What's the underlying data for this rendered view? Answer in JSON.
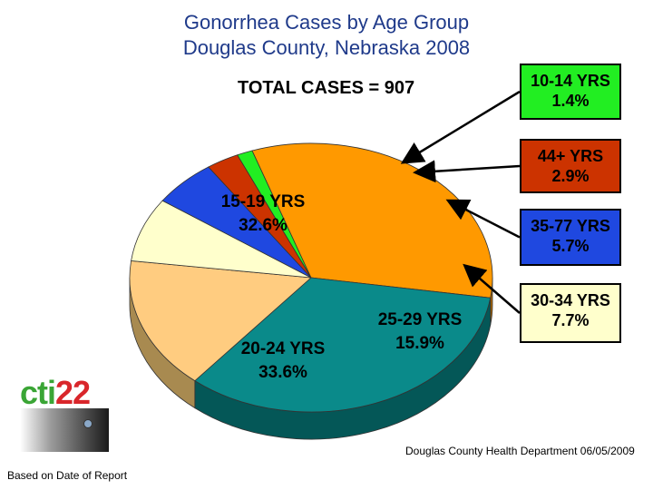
{
  "chart_data": {
    "type": "pie",
    "title": "Gonorrhea Cases by Age Group",
    "subtitle": "Douglas County, Nebraska 2008",
    "total_label": "TOTAL CASES = 907",
    "slices": [
      {
        "label": "10-14 YRS",
        "value": 1.4,
        "pct_label": "1.4%",
        "color": "#22ee22",
        "side": "#119911"
      },
      {
        "label": "15-19 YRS",
        "value": 32.6,
        "pct_label": "32.6%",
        "color": "#ff9900",
        "side": "#b86b00"
      },
      {
        "label": "20-24 YRS",
        "value": 33.6,
        "pct_label": "33.6%",
        "color": "#0a8a8a",
        "side": "#045757"
      },
      {
        "label": "25-29 YRS",
        "value": 15.9,
        "pct_label": "15.9%",
        "color": "#ffcc80",
        "side": "#a88a50"
      },
      {
        "label": "30-34 YRS",
        "value": 7.7,
        "pct_label": "7.7%",
        "color": "#ffffcc",
        "side": "#b0b08a"
      },
      {
        "label": "35-77 YRS",
        "value": 5.7,
        "pct_label": "5.7%",
        "color": "#1f48e0",
        "side": "#14309a"
      },
      {
        "label": "44+ YRS",
        "value": 2.9,
        "pct_label": "2.9%",
        "color": "#cc3300",
        "side": "#8a2200"
      }
    ]
  },
  "footer": {
    "source": "Douglas County Health Department 06/05/2009",
    "basis": "Based on Date of Report"
  },
  "logo": {
    "part1": "cti",
    "part2": "22"
  }
}
